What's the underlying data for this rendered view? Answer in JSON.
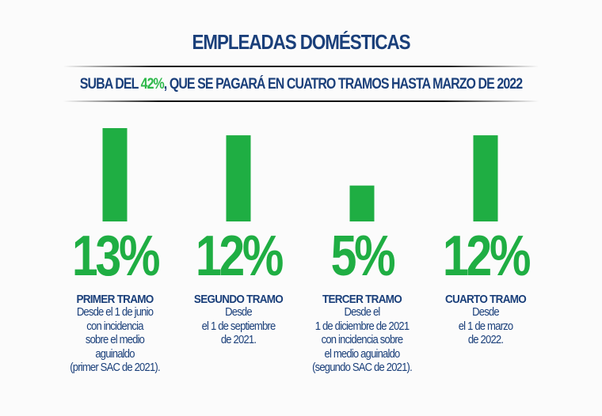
{
  "header": {
    "title": "EMPLEADAS DOMÉSTICAS",
    "subtitle_pre": "SUBA DEL ",
    "subtitle_highlight": "42%",
    "subtitle_post": ", QUE SE PAGARÁ EN CUATRO TRAMOS HASTA MARZO DE 2022"
  },
  "colors": {
    "bar": "#1fae43",
    "text": "#1a3f7a",
    "highlight": "#2db84a"
  },
  "chart_data": {
    "type": "bar",
    "title": "EMPLEADAS DOMÉSTICAS",
    "subtitle": "SUBA DEL 42%, QUE SE PAGARÁ EN CUATRO TRAMOS HASTA MARZO DE 2022",
    "categories": [
      "PRIMER TRAMO",
      "SEGUNDO TRAMO",
      "TERCER TRAMO",
      "CUARTO TRAMO"
    ],
    "values": [
      13,
      12,
      5,
      12
    ],
    "value_labels": [
      "13%",
      "12%",
      "5%",
      "12%"
    ],
    "unit": "%",
    "xlabel": "",
    "ylabel": "",
    "ylim": [
      0,
      13
    ],
    "grid": false,
    "legend": "none"
  },
  "tramos": [
    {
      "name": "PRIMER TRAMO",
      "lines": [
        "Desde el 1 de junio",
        "con incidencia",
        "sobre el medio",
        "aguinaldo",
        "(primer SAC de 2021)."
      ]
    },
    {
      "name": "SEGUNDO TRAMO",
      "lines": [
        "Desde",
        "el 1 de septiembre",
        "de 2021."
      ]
    },
    {
      "name": "TERCER TRAMO",
      "lines": [
        "Desde el",
        "1 de diciembre de 2021",
        "con incidencia sobre",
        "el medio aguinaldo",
        "(segundo SAC de 2021)."
      ]
    },
    {
      "name": "CUARTO TRAMO",
      "lines": [
        "Desde",
        "el 1 de marzo",
        "de 2022."
      ]
    }
  ]
}
